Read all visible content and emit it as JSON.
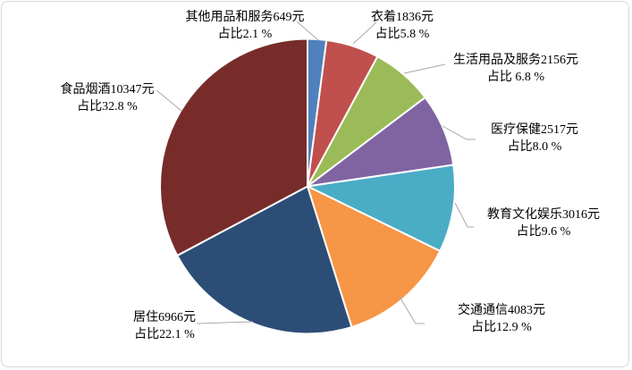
{
  "chart_data": {
    "type": "pie",
    "title": "",
    "unit": "元",
    "total_value": 31570,
    "start_angle_deg": 0,
    "direction": "clockwise",
    "legend": "none",
    "label_style": "outside-with-leader-lines",
    "slices": [
      {
        "category": "其他用品和服务",
        "value": 649,
        "percent": 2.1,
        "color": "#4F81BD",
        "label_line1": "其他用品和服务649元",
        "label_line2": "占比2.1 %"
      },
      {
        "category": "衣着",
        "value": 1836,
        "percent": 5.8,
        "color": "#C0504D",
        "label_line1": "衣着1836元",
        "label_line2": "占比5.8 %"
      },
      {
        "category": "生活用品及服务",
        "value": 2156,
        "percent": 6.8,
        "color": "#9BBB59",
        "label_line1": "生活用品及服务2156元",
        "label_line2": "占比 6.8 %"
      },
      {
        "category": "医疗保健",
        "value": 2517,
        "percent": 8.0,
        "color": "#8064A2",
        "label_line1": "医疗保健2517元",
        "label_line2": "占比8.0 %"
      },
      {
        "category": "教育文化娱乐",
        "value": 3016,
        "percent": 9.6,
        "color": "#4BACC6",
        "label_line1": "教育文化娱乐3016元",
        "label_line2": "占比9.6 %"
      },
      {
        "category": "交通通信",
        "value": 4083,
        "percent": 12.9,
        "color": "#F79646",
        "label_line1": "交通通信4083元",
        "label_line2": "占比12.9 %"
      },
      {
        "category": "居住",
        "value": 6966,
        "percent": 22.1,
        "color": "#2C4D75",
        "label_line1": "居住6966元",
        "label_line2": "占比22.1 %"
      },
      {
        "category": "食品烟酒",
        "value": 10347,
        "percent": 32.8,
        "color": "#772C2A",
        "label_line1": "食品烟酒10347元",
        "label_line2": "占比32.8 %"
      }
    ]
  },
  "canvas": {
    "background": "#FFFFFF",
    "border_color": "#D7D7D7",
    "leader_line_color": "#A8A8A8",
    "slice_separator_color": "#FFFFFF",
    "text_color": "#000000"
  }
}
